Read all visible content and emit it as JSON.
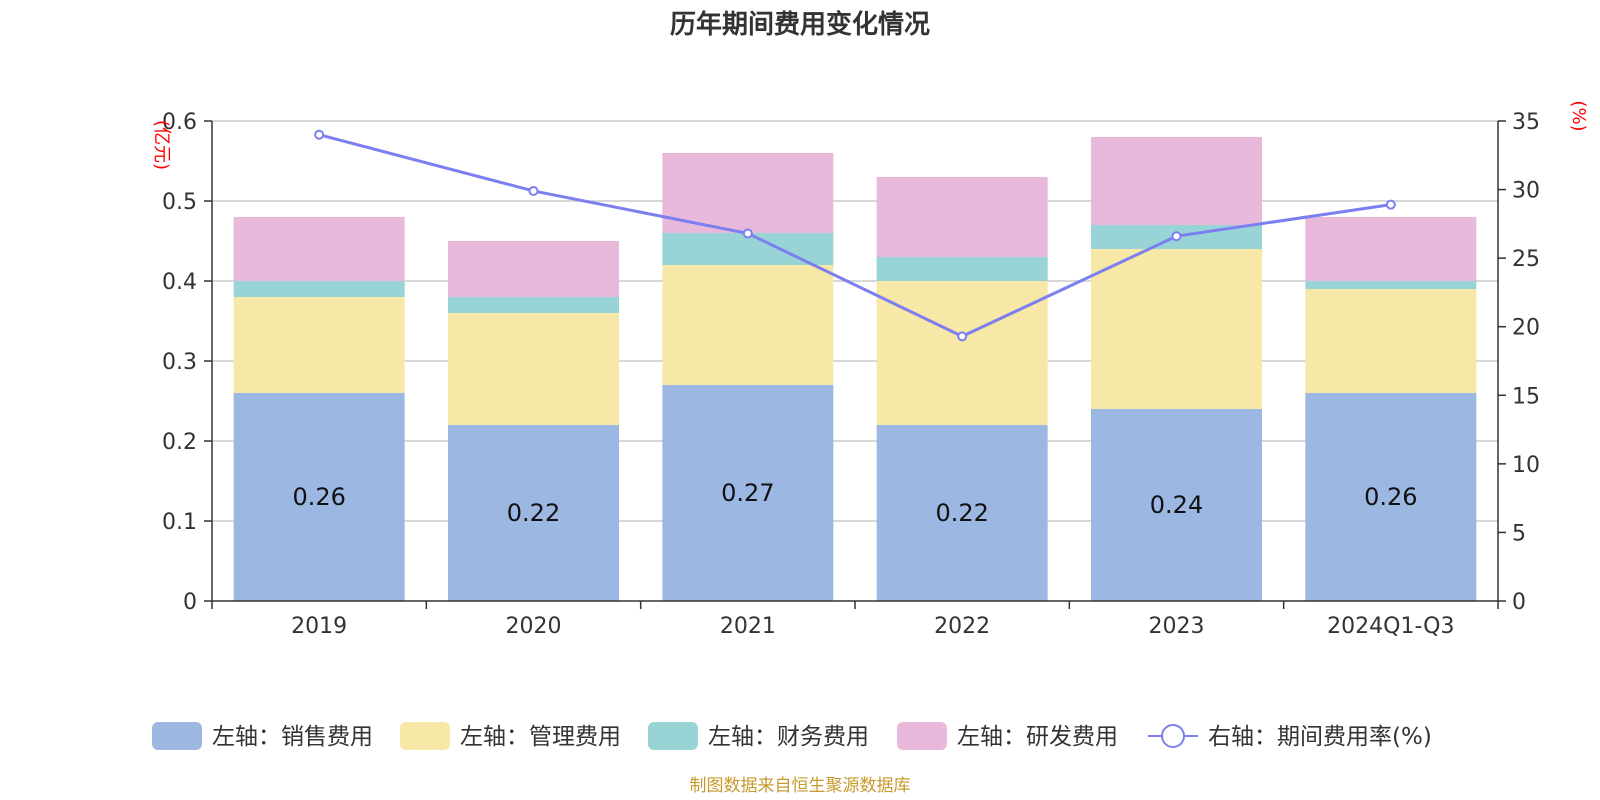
{
  "chart_data": {
    "type": "bar",
    "title": "历年期间费用变化情况",
    "categories": [
      "2019",
      "2020",
      "2021",
      "2022",
      "2023",
      "2024Q1-Q3"
    ],
    "series": [
      {
        "name": "左轴：销售费用",
        "axis": "left",
        "type": "bar",
        "stack": "cost",
        "color": "#9cb8e2",
        "values": [
          0.26,
          0.22,
          0.27,
          0.22,
          0.24,
          0.26
        ]
      },
      {
        "name": "左轴：管理费用",
        "axis": "left",
        "type": "bar",
        "stack": "cost",
        "color": "#f7e8a7",
        "values": [
          0.12,
          0.14,
          0.15,
          0.18,
          0.2,
          0.13
        ]
      },
      {
        "name": "左轴：财务费用",
        "axis": "left",
        "type": "bar",
        "stack": "cost",
        "color": "#98d4d5",
        "values": [
          0.02,
          0.02,
          0.04,
          0.03,
          0.03,
          0.01
        ]
      },
      {
        "name": "左轴：研发费用",
        "axis": "left",
        "type": "bar",
        "stack": "cost",
        "color": "#e8b9da",
        "values": [
          0.08,
          0.07,
          0.1,
          0.1,
          0.11,
          0.08
        ]
      },
      {
        "name": "右轴：期间费用率(%)",
        "axis": "right",
        "type": "line",
        "color": "#7b7ff0",
        "values": [
          34.0,
          29.9,
          26.8,
          19.3,
          26.6,
          28.9
        ]
      }
    ],
    "bar_labels": [
      "0.26",
      "0.22",
      "0.27",
      "0.22",
      "0.24",
      "0.26"
    ],
    "y_left": {
      "unit": "(亿元)",
      "min": 0,
      "max": 0.6,
      "ticks": [
        "0",
        "0.1",
        "0.2",
        "0.3",
        "0.4",
        "0.5",
        "0.6"
      ]
    },
    "y_right": {
      "unit": "(%)",
      "min": 0,
      "max": 35,
      "ticks": [
        "0",
        "5",
        "10",
        "15",
        "20",
        "25",
        "30",
        "35"
      ]
    },
    "grid": true,
    "legend_position": "bottom"
  },
  "source_note": "制图数据来自恒生聚源数据库"
}
